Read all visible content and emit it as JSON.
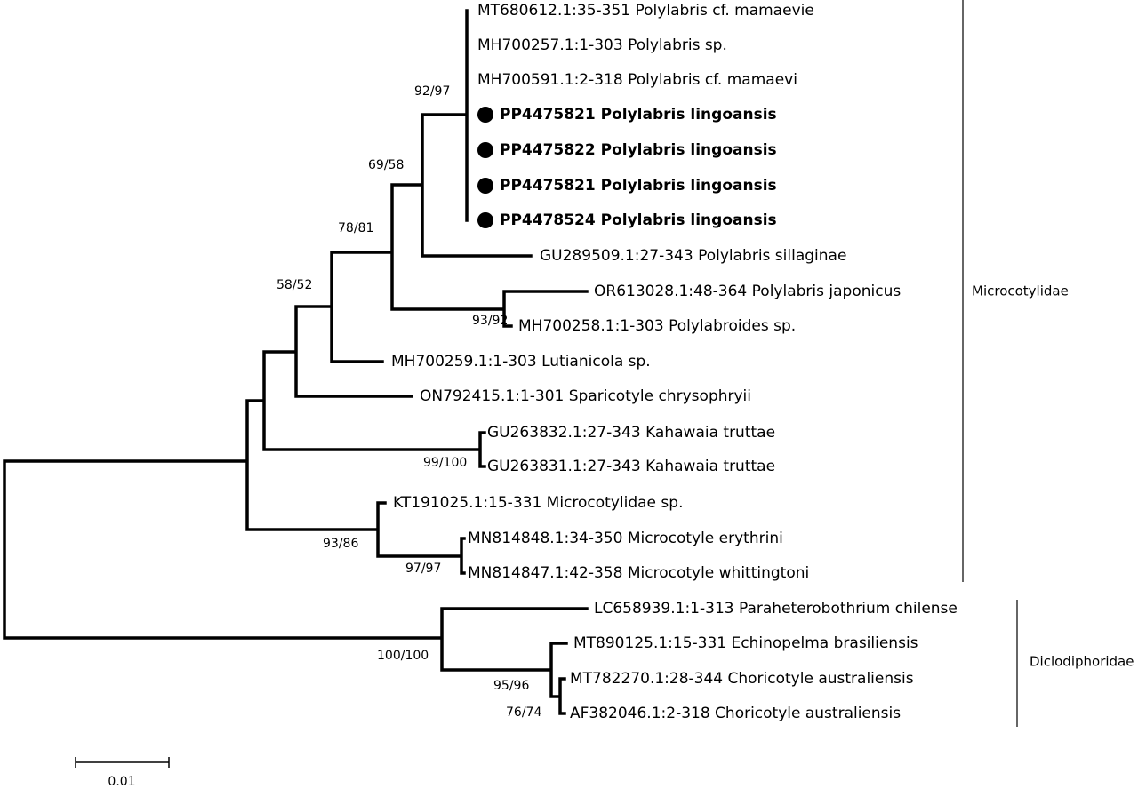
{
  "tree": {
    "leaves": [
      "MT680612.1:35-351 Polylabris cf. mamaevie",
      "MH700257.1:1-303 Polylabris sp.",
      "MH700591.1:2-318 Polylabris cf. mamaevi",
      "PP4475821 Polylabris lingoansis",
      "PP4475822 Polylabris lingoansis",
      "PP4475821 Polylabris lingoansis",
      "PP4478524 Polylabris lingoansis",
      "GU289509.1:27-343 Polylabris sillaginae",
      "OR613028.1:48-364 Polylabris japonicus",
      "MH700258.1:1-303 Polylabroides sp.",
      "MH700259.1:1-303 Lutianicola sp.",
      "ON792415.1:1-301 Sparicotyle chrysophryii",
      "GU263832.1:27-343 Kahawaia truttae",
      "GU263831.1:27-343 Kahawaia truttae",
      "KT191025.1:15-331 Microcotylidae sp.",
      "MN814848.1:34-350 Microcotyle erythrini",
      "MN814847.1:42-358 Microcotyle whittingtoni",
      "LC658939.1:1-313 Paraheterobothrium chilense",
      "MT890125.1:15-331 Echinopelma brasiliensis",
      "MT782270.1:28-344 Choricotyle australiensis",
      "AF382046.1:2-318 Choricotyle australiensis"
    ],
    "supports": [
      "92/97",
      "69/58",
      "78/81",
      "58/52",
      "93/92",
      "99/100",
      "93/86",
      "97/97",
      "100/100",
      "95/96",
      "76/74"
    ],
    "clades": [
      "Microcotylidae",
      "Diclodiphoridae"
    ],
    "scale_bar": "0.01"
  }
}
